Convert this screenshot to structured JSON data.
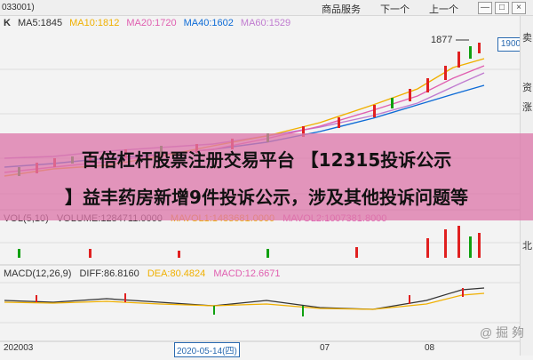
{
  "topbar": {
    "code": "033001)",
    "btn_detail": "商品服务",
    "btn_next": "下一个",
    "btn_prev": "上一个",
    "win_min": "—",
    "win_max": "□",
    "win_close": "×"
  },
  "legend": {
    "k": "K",
    "ma5": "MA5:1845",
    "ma10": "MA10:1812",
    "ma20": "MA20:1720",
    "ma40": "MA40:1602",
    "ma60": "MA60:1529"
  },
  "price_box": "1900",
  "peak_label": "1877",
  "rightpanel": {
    "a": "卖",
    "b": "资",
    "c": "涨",
    "d": "北"
  },
  "vol_label": {
    "name": "VOL(5,10)",
    "vol": "VOLUME:1284711.0000",
    "mavol1": "MAVOL1:1483681.0000",
    "mavol2": "MAVOL2:1007381.8000"
  },
  "macd_label": {
    "name": "MACD(12,26,9)",
    "diff": "DIFF:86.8160",
    "dea": "DEA:80.4824",
    "macd": "MACD:12.6671"
  },
  "dates": {
    "d1": "202003",
    "d2": "2020-05-14(四)",
    "d3": "07",
    "d4": "08"
  },
  "overlay": {
    "line1": "百倍杠杆股票注册交易平台 【12315投诉公示",
    "line2": "】益丰药房新增9件投诉公示，涉及其他投诉问题等"
  },
  "watermark": "@ 掘 夠",
  "colors": {
    "up": "#e02020",
    "down": "#10a010",
    "ma10": "#f0b000",
    "ma20": "#e05fb0",
    "ma40": "#0d6bd6",
    "ma60": "#c07cd0"
  }
}
